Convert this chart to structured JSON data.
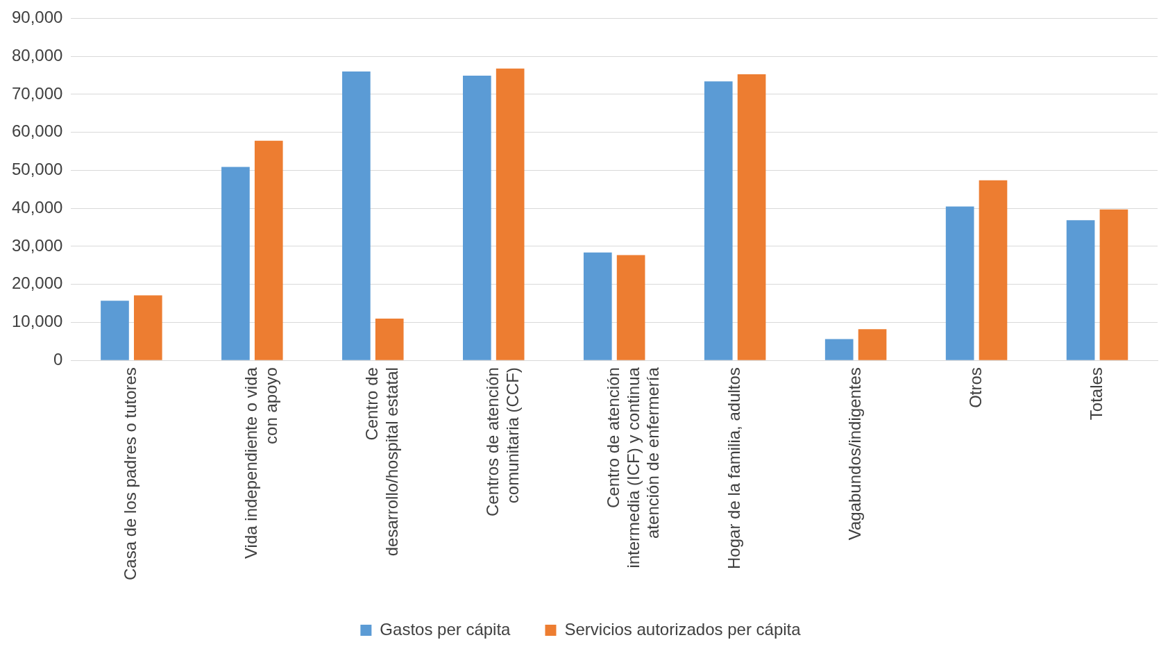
{
  "chart_data": {
    "type": "bar",
    "categories": [
      "Casa de los padres o tutores",
      "Vida independiente o vida con apoyo",
      "Centro de desarrollo/hospital estatal",
      "Centros de atención comunitaria (CCF)",
      "Centro de atención intermedia (ICF) y continua atención de enfermería",
      "Hogar de la familia, adultos",
      "Vagabundos/indigentes",
      "Otros",
      "Totales"
    ],
    "series": [
      {
        "name": "Gastos per cápita",
        "color": "#5b9bd5",
        "values": [
          15700,
          50900,
          76000,
          74900,
          28400,
          73400,
          5600,
          40500,
          36900
        ]
      },
      {
        "name": "Servicios autorizados per cápita",
        "color": "#ed7d31",
        "values": [
          17100,
          57800,
          11000,
          76800,
          27700,
          75300,
          8200,
          47400,
          39700
        ]
      }
    ],
    "ylim": [
      0,
      90000
    ],
    "yticks": [
      {
        "value": 0,
        "label": "0"
      },
      {
        "value": 10000,
        "label": "10,000"
      },
      {
        "value": 20000,
        "label": "20,000"
      },
      {
        "value": 30000,
        "label": "30,000"
      },
      {
        "value": 40000,
        "label": "40,000"
      },
      {
        "value": 50000,
        "label": "50,000"
      },
      {
        "value": 60000,
        "label": "60,000"
      },
      {
        "value": 70000,
        "label": "70,000"
      },
      {
        "value": 80000,
        "label": "80,000"
      },
      {
        "value": 90000,
        "label": "90,000"
      }
    ],
    "grid": "y",
    "legend": "bottom"
  }
}
